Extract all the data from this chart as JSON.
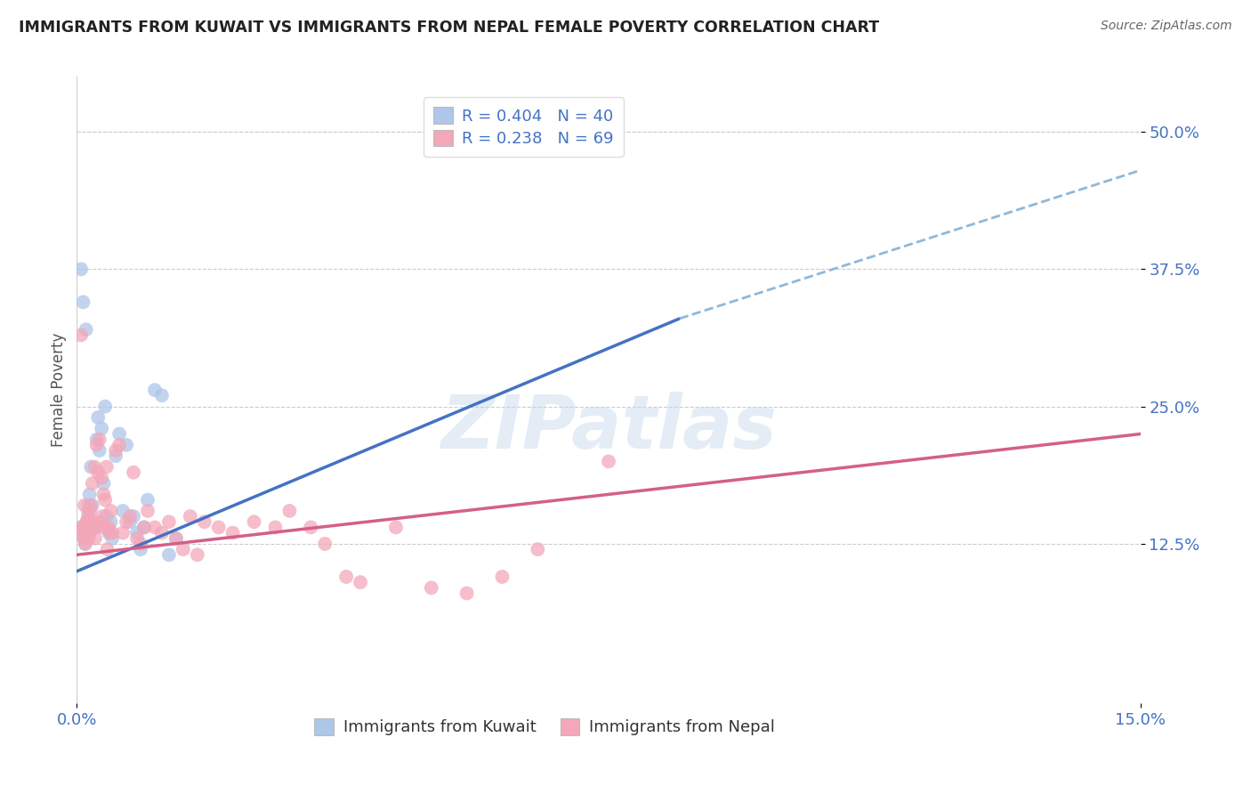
{
  "title": "IMMIGRANTS FROM KUWAIT VS IMMIGRANTS FROM NEPAL FEMALE POVERTY CORRELATION CHART",
  "source": "Source: ZipAtlas.com",
  "ylabel": "Female Poverty",
  "ylabel_ticks": [
    "50.0%",
    "37.5%",
    "25.0%",
    "12.5%"
  ],
  "ylabel_tick_vals": [
    50.0,
    37.5,
    25.0,
    12.5
  ],
  "xlim": [
    0.0,
    15.0
  ],
  "ylim": [
    -2.0,
    55.0
  ],
  "legend_r1": "R = 0.404   N = 40",
  "legend_r2": "R = 0.238   N = 69",
  "kuwait_color": "#aec6e8",
  "nepal_color": "#f4a7b9",
  "line_blue": "#4472c4",
  "line_pink": "#d45f8a",
  "line_dashed_color": "#90b8d8",
  "watermark": "ZIPatlas",
  "blue_line_x0": 0.0,
  "blue_line_y0": 10.0,
  "blue_line_x1": 8.5,
  "blue_line_y1": 33.0,
  "blue_dash_x0": 8.5,
  "blue_dash_y0": 33.0,
  "blue_dash_x1": 15.0,
  "blue_dash_y1": 46.5,
  "pink_line_x0": 0.0,
  "pink_line_y0": 11.5,
  "pink_line_x1": 15.0,
  "pink_line_y1": 22.5,
  "kuwait_scatter_x": [
    0.05,
    0.08,
    0.1,
    0.12,
    0.14,
    0.16,
    0.18,
    0.2,
    0.22,
    0.25,
    0.28,
    0.3,
    0.32,
    0.35,
    0.38,
    0.4,
    0.42,
    0.45,
    0.48,
    0.5,
    0.55,
    0.6,
    0.65,
    0.7,
    0.75,
    0.8,
    0.85,
    0.9,
    0.95,
    1.0,
    1.1,
    1.2,
    1.3,
    1.4,
    0.06,
    0.09,
    0.13,
    0.17,
    0.23,
    7.5
  ],
  "kuwait_scatter_y": [
    14.0,
    13.5,
    13.0,
    12.5,
    14.5,
    15.5,
    17.0,
    19.5,
    16.0,
    14.0,
    22.0,
    24.0,
    21.0,
    23.0,
    18.0,
    25.0,
    15.0,
    13.5,
    14.5,
    13.0,
    20.5,
    22.5,
    15.5,
    21.5,
    14.5,
    15.0,
    13.5,
    12.0,
    14.0,
    16.5,
    26.5,
    26.0,
    11.5,
    13.0,
    37.5,
    34.5,
    32.0,
    16.0,
    14.0,
    50.5
  ],
  "nepal_scatter_x": [
    0.05,
    0.08,
    0.1,
    0.12,
    0.14,
    0.16,
    0.18,
    0.2,
    0.22,
    0.25,
    0.28,
    0.3,
    0.32,
    0.35,
    0.38,
    0.4,
    0.42,
    0.45,
    0.48,
    0.5,
    0.55,
    0.6,
    0.65,
    0.7,
    0.75,
    0.8,
    0.85,
    0.9,
    0.95,
    1.0,
    1.1,
    1.2,
    1.3,
    1.4,
    1.5,
    1.6,
    1.7,
    1.8,
    2.0,
    2.2,
    2.5,
    2.8,
    3.0,
    3.3,
    3.5,
    3.8,
    4.0,
    4.5,
    5.0,
    5.5,
    6.0,
    6.5,
    0.06,
    0.09,
    0.11,
    0.13,
    0.15,
    0.17,
    0.19,
    0.21,
    0.23,
    0.26,
    0.29,
    0.33,
    0.36,
    0.39,
    0.43,
    0.47,
    7.5
  ],
  "nepal_scatter_y": [
    13.5,
    14.0,
    13.0,
    12.5,
    14.5,
    15.0,
    13.5,
    16.0,
    18.0,
    19.5,
    21.5,
    19.0,
    22.0,
    18.5,
    17.0,
    16.5,
    19.5,
    14.0,
    15.5,
    13.5,
    21.0,
    21.5,
    13.5,
    14.5,
    15.0,
    19.0,
    13.0,
    12.5,
    14.0,
    15.5,
    14.0,
    13.5,
    14.5,
    13.0,
    12.0,
    15.0,
    11.5,
    14.5,
    14.0,
    13.5,
    14.5,
    14.0,
    15.5,
    14.0,
    12.5,
    9.5,
    9.0,
    14.0,
    8.5,
    8.0,
    9.5,
    12.0,
    31.5,
    14.0,
    16.0,
    14.0,
    14.5,
    13.0,
    15.5,
    14.0,
    14.5,
    13.0,
    14.0,
    14.5,
    15.0,
    14.0,
    12.0,
    13.5,
    20.0
  ]
}
